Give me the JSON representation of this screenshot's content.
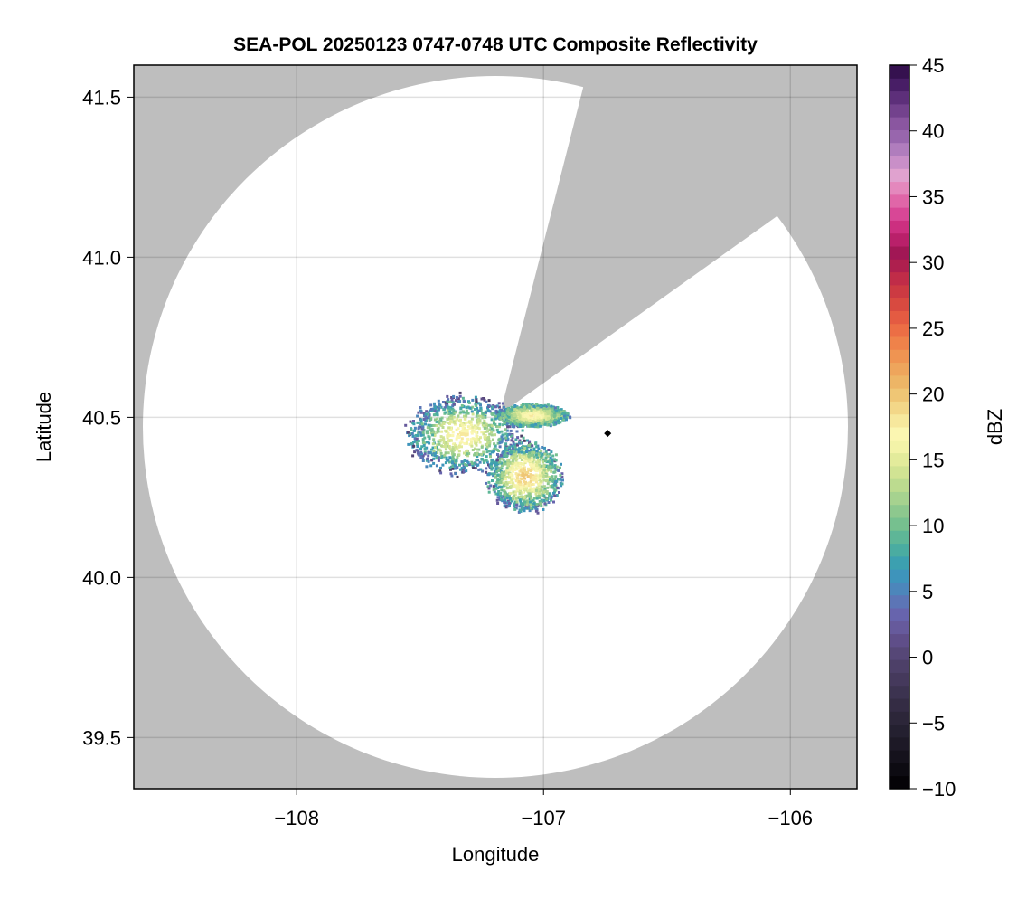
{
  "chart_data": {
    "type": "heatmap",
    "title": "SEA-POL 20250123 0747-0748 UTC Composite Reflectivity",
    "xlabel": "Longitude",
    "ylabel": "Latitude",
    "xlim": [
      -108.66,
      -105.73
    ],
    "ylim": [
      39.34,
      41.6
    ],
    "xticks": [
      -108,
      -107,
      -106
    ],
    "xtick_labels": [
      "−108",
      "−107",
      "−106"
    ],
    "yticks": [
      39.5,
      40.0,
      40.5,
      41.0,
      41.5
    ],
    "ytick_labels": [
      "39.5",
      "40.0",
      "40.5",
      "41.0",
      "41.5"
    ],
    "grid": true,
    "no_data_color": "#bebebe",
    "radar_marker": {
      "lon": -106.74,
      "lat": 40.45,
      "shape": "diamond"
    },
    "colorbar": {
      "label": "dBZ",
      "range": [
        -10,
        45
      ],
      "ticks": [
        -10,
        -5,
        0,
        5,
        10,
        15,
        20,
        25,
        30,
        35,
        40,
        45
      ],
      "tick_labels": [
        "−10",
        "−5",
        "0",
        "5",
        "10",
        "15",
        "20",
        "25",
        "30",
        "35",
        "40",
        "45"
      ],
      "colors": [
        "#050307",
        "#0d0b12",
        "#15121c",
        "#1d1926",
        "#242030",
        "#2c2639",
        "#342c44",
        "#3c3350",
        "#45395c",
        "#4d4068",
        "#564777",
        "#5f4e89",
        "#665a9c",
        "#6764ad",
        "#5c75b6",
        "#4c86bb",
        "#3e94bb",
        "#3ca0b0",
        "#4aaca1",
        "#5eb697",
        "#76c08f",
        "#8dc88e",
        "#a6d28f",
        "#bcdb8f",
        "#d1e393",
        "#e3eb9b",
        "#f3f3a8",
        "#fbf6b1",
        "#f7e89d",
        "#f3d788",
        "#efc675",
        "#edb566",
        "#eea55c",
        "#ef9452",
        "#ef824a",
        "#ec6e45",
        "#e45b42",
        "#d84a40",
        "#cc3a42",
        "#c02c48",
        "#ae1f4e",
        "#a11755",
        "#b9206a",
        "#cc2f80",
        "#d84796",
        "#e066a8",
        "#e488bd",
        "#e0a2cf",
        "#c98fc8",
        "#b07dbd",
        "#9866ad",
        "#8a56a0",
        "#73428d",
        "#5d2f7a",
        "#481e66",
        "#35114f"
      ]
    },
    "echo_regions": [
      {
        "name": "west cluster",
        "lon_range": [
          -107.5,
          -107.17
        ],
        "lat_range": [
          40.3,
          40.55
        ],
        "dBZ_range": [
          0,
          18
        ]
      },
      {
        "name": "northeast cluster",
        "lon_range": [
          -107.15,
          -106.93
        ],
        "lat_range": [
          40.47,
          40.55
        ],
        "dBZ_range": [
          5,
          18
        ]
      },
      {
        "name": "southeast cluster",
        "lon_range": [
          -107.2,
          -106.97
        ],
        "lat_range": [
          40.23,
          40.42
        ],
        "dBZ_range": [
          2,
          20
        ]
      }
    ]
  }
}
